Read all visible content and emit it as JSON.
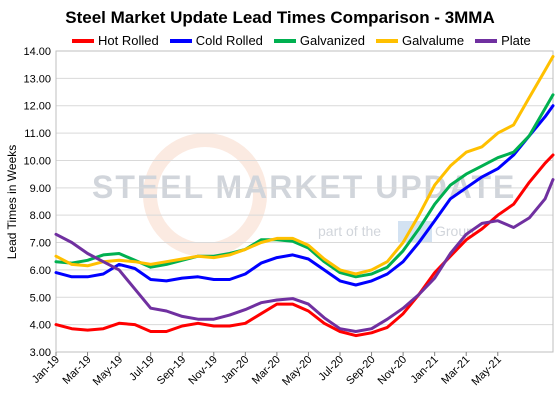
{
  "chart_data": {
    "type": "line",
    "title": "Steel Market Update Lead Times Comparison - 3MMA",
    "ylabel": "Lead Times in Weeks",
    "xlabel": "",
    "ylim": [
      3.0,
      14.0
    ],
    "y_ticks": [
      "3.00",
      "4.00",
      "5.00",
      "6.00",
      "7.00",
      "8.00",
      "9.00",
      "10.00",
      "11.00",
      "12.00",
      "13.00",
      "14.00"
    ],
    "x_tick_labels": [
      "Jan-19",
      "Mar-19",
      "May-19",
      "Jul-19",
      "Sep-19",
      "Nov-19",
      "Jan-20",
      "Mar-20",
      "May-20",
      "Jul-20",
      "Sep-20",
      "Nov-20",
      "Jan-21",
      "Mar-21",
      "May-21"
    ],
    "grid": true,
    "legend_position": "top",
    "x_points": 64,
    "series": [
      {
        "name": "Hot Rolled",
        "color": "#ff0000",
        "points": [
          [
            0,
            4.0
          ],
          [
            2,
            3.85
          ],
          [
            4,
            3.8
          ],
          [
            6,
            3.85
          ],
          [
            8,
            4.05
          ],
          [
            10,
            4.0
          ],
          [
            12,
            3.75
          ],
          [
            14,
            3.75
          ],
          [
            16,
            3.95
          ],
          [
            18,
            4.05
          ],
          [
            20,
            3.95
          ],
          [
            22,
            3.95
          ],
          [
            24,
            4.05
          ],
          [
            26,
            4.4
          ],
          [
            28,
            4.75
          ],
          [
            30,
            4.75
          ],
          [
            32,
            4.5
          ],
          [
            34,
            4.05
          ],
          [
            36,
            3.75
          ],
          [
            38,
            3.6
          ],
          [
            40,
            3.7
          ],
          [
            42,
            3.9
          ],
          [
            44,
            4.4
          ],
          [
            46,
            5.1
          ],
          [
            48,
            5.9
          ],
          [
            50,
            6.5
          ],
          [
            52,
            7.1
          ],
          [
            54,
            7.5
          ],
          [
            56,
            8.0
          ],
          [
            58,
            8.4
          ],
          [
            60,
            9.2
          ],
          [
            62,
            9.9
          ],
          [
            63,
            10.2
          ]
        ]
      },
      {
        "name": "Cold Rolled",
        "color": "#0000ff",
        "points": [
          [
            0,
            5.9
          ],
          [
            2,
            5.75
          ],
          [
            4,
            5.75
          ],
          [
            6,
            5.85
          ],
          [
            8,
            6.2
          ],
          [
            10,
            6.05
          ],
          [
            12,
            5.65
          ],
          [
            14,
            5.6
          ],
          [
            16,
            5.7
          ],
          [
            18,
            5.75
          ],
          [
            20,
            5.65
          ],
          [
            22,
            5.65
          ],
          [
            24,
            5.85
          ],
          [
            26,
            6.25
          ],
          [
            28,
            6.45
          ],
          [
            30,
            6.55
          ],
          [
            32,
            6.4
          ],
          [
            34,
            6.0
          ],
          [
            36,
            5.6
          ],
          [
            38,
            5.45
          ],
          [
            40,
            5.6
          ],
          [
            42,
            5.85
          ],
          [
            44,
            6.3
          ],
          [
            46,
            7.0
          ],
          [
            48,
            7.8
          ],
          [
            50,
            8.6
          ],
          [
            52,
            9.0
          ],
          [
            54,
            9.4
          ],
          [
            56,
            9.7
          ],
          [
            58,
            10.2
          ],
          [
            60,
            10.9
          ],
          [
            62,
            11.6
          ],
          [
            63,
            12.0
          ]
        ]
      },
      {
        "name": "Galvanized",
        "color": "#00b050",
        "points": [
          [
            0,
            6.3
          ],
          [
            2,
            6.25
          ],
          [
            4,
            6.35
          ],
          [
            6,
            6.55
          ],
          [
            8,
            6.6
          ],
          [
            10,
            6.35
          ],
          [
            12,
            6.1
          ],
          [
            14,
            6.2
          ],
          [
            16,
            6.35
          ],
          [
            18,
            6.5
          ],
          [
            20,
            6.5
          ],
          [
            22,
            6.6
          ],
          [
            24,
            6.75
          ],
          [
            26,
            7.1
          ],
          [
            28,
            7.1
          ],
          [
            30,
            7.05
          ],
          [
            32,
            6.8
          ],
          [
            34,
            6.3
          ],
          [
            36,
            5.9
          ],
          [
            38,
            5.75
          ],
          [
            40,
            5.85
          ],
          [
            42,
            6.1
          ],
          [
            44,
            6.7
          ],
          [
            46,
            7.5
          ],
          [
            48,
            8.4
          ],
          [
            50,
            9.1
          ],
          [
            52,
            9.5
          ],
          [
            54,
            9.8
          ],
          [
            56,
            10.1
          ],
          [
            58,
            10.3
          ],
          [
            60,
            10.9
          ],
          [
            62,
            11.9
          ],
          [
            63,
            12.4
          ]
        ]
      },
      {
        "name": "Galvalume",
        "color": "#ffc000",
        "points": [
          [
            0,
            6.5
          ],
          [
            2,
            6.2
          ],
          [
            4,
            6.15
          ],
          [
            6,
            6.3
          ],
          [
            8,
            6.35
          ],
          [
            10,
            6.3
          ],
          [
            12,
            6.2
          ],
          [
            14,
            6.3
          ],
          [
            16,
            6.4
          ],
          [
            18,
            6.5
          ],
          [
            20,
            6.45
          ],
          [
            22,
            6.55
          ],
          [
            24,
            6.75
          ],
          [
            26,
            7.0
          ],
          [
            28,
            7.15
          ],
          [
            30,
            7.15
          ],
          [
            32,
            6.9
          ],
          [
            34,
            6.4
          ],
          [
            36,
            6.0
          ],
          [
            38,
            5.85
          ],
          [
            40,
            6.0
          ],
          [
            42,
            6.3
          ],
          [
            44,
            7.0
          ],
          [
            46,
            8.0
          ],
          [
            48,
            9.1
          ],
          [
            50,
            9.8
          ],
          [
            52,
            10.3
          ],
          [
            54,
            10.5
          ],
          [
            56,
            11.0
          ],
          [
            58,
            11.3
          ],
          [
            60,
            12.3
          ],
          [
            62,
            13.3
          ],
          [
            63,
            13.8
          ]
        ]
      },
      {
        "name": "Plate",
        "color": "#7030a0",
        "points": [
          [
            0,
            7.3
          ],
          [
            2,
            7.0
          ],
          [
            4,
            6.6
          ],
          [
            6,
            6.3
          ],
          [
            8,
            6.0
          ],
          [
            10,
            5.3
          ],
          [
            12,
            4.6
          ],
          [
            14,
            4.5
          ],
          [
            16,
            4.3
          ],
          [
            18,
            4.2
          ],
          [
            20,
            4.2
          ],
          [
            22,
            4.35
          ],
          [
            24,
            4.55
          ],
          [
            26,
            4.8
          ],
          [
            28,
            4.9
          ],
          [
            30,
            4.95
          ],
          [
            32,
            4.75
          ],
          [
            34,
            4.25
          ],
          [
            36,
            3.85
          ],
          [
            38,
            3.75
          ],
          [
            40,
            3.85
          ],
          [
            42,
            4.2
          ],
          [
            44,
            4.6
          ],
          [
            46,
            5.1
          ],
          [
            48,
            5.7
          ],
          [
            50,
            6.6
          ],
          [
            52,
            7.3
          ],
          [
            54,
            7.7
          ],
          [
            56,
            7.8
          ],
          [
            58,
            7.55
          ],
          [
            60,
            7.9
          ],
          [
            62,
            8.6
          ],
          [
            63,
            9.3
          ]
        ]
      }
    ]
  },
  "watermark": {
    "brand": "STEEL MARKET UPDATE",
    "part_of_prefix": "part of the",
    "part_of_suffix": "Group",
    "brand_color": "#9aa3b0",
    "accent_color": "#e8793f"
  }
}
